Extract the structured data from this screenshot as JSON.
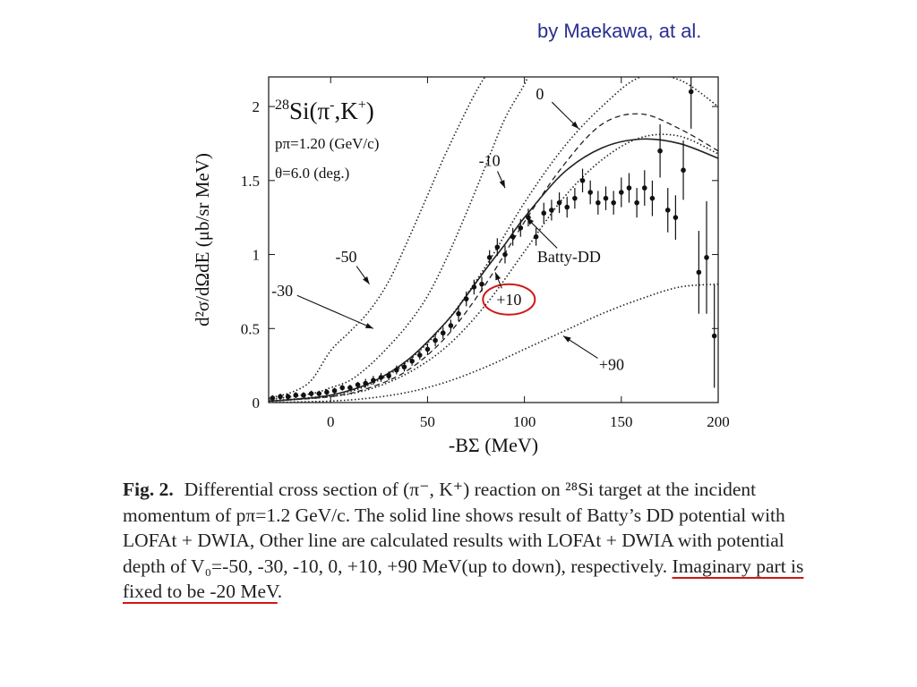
{
  "credit": "by Maekawa, at al.",
  "chart_data": {
    "type": "line",
    "title": "28Si(π-,K+)",
    "title_parts": {
      "mass": "28",
      "element": "Si(π",
      "minus": "-",
      "comma": ",K",
      "plus": "+",
      "close": ")"
    },
    "params": [
      "pπ=1.20 (GeV/c)",
      "θ=6.0 (deg.)"
    ],
    "xlabel": "-BΣ (MeV)",
    "ylabel": "d²σ/dΩdE (μb/sr MeV)",
    "xlim": [
      -32,
      200
    ],
    "ylim": [
      0,
      2.2
    ],
    "xticks": [
      0,
      50,
      100,
      150,
      200
    ],
    "yticks": [
      0,
      0.5,
      1,
      1.5,
      2
    ],
    "ytick_labels": [
      "0",
      "0.5",
      "1",
      "1.5",
      "2"
    ],
    "series": [
      {
        "name": "-50",
        "style": "dotted",
        "x": [
          -32,
          -20,
          -10,
          0,
          10,
          20,
          30,
          40,
          50,
          60,
          75,
          85
        ],
        "y": [
          0.03,
          0.07,
          0.15,
          0.35,
          0.48,
          0.62,
          0.82,
          1.1,
          1.4,
          1.7,
          2.1,
          2.3
        ]
      },
      {
        "name": "-30",
        "style": "dotted",
        "x": [
          -32,
          -10,
          0,
          10,
          20,
          30,
          40,
          50,
          60,
          70,
          80,
          90,
          100,
          105
        ],
        "y": [
          0.02,
          0.06,
          0.1,
          0.15,
          0.25,
          0.38,
          0.53,
          0.72,
          0.98,
          1.28,
          1.6,
          1.92,
          2.15,
          2.3
        ]
      },
      {
        "name": "-10",
        "style": "dotted",
        "x": [
          -32,
          0,
          20,
          40,
          60,
          80,
          100,
          120,
          140,
          160,
          180,
          200
        ],
        "y": [
          0.01,
          0.05,
          0.12,
          0.28,
          0.55,
          0.92,
          1.35,
          1.72,
          2.0,
          2.2,
          2.18,
          2.0
        ]
      },
      {
        "name": "0",
        "style": "dashed",
        "x": [
          -32,
          0,
          20,
          40,
          60,
          80,
          100,
          120,
          140,
          160,
          180,
          200
        ],
        "y": [
          0.01,
          0.04,
          0.1,
          0.22,
          0.45,
          0.8,
          1.22,
          1.6,
          1.88,
          1.95,
          1.85,
          1.7
        ]
      },
      {
        "name": "Batty-DD",
        "style": "solid",
        "x": [
          -32,
          -20,
          0,
          20,
          40,
          60,
          70,
          80,
          90,
          100,
          120,
          140,
          160,
          180,
          200
        ],
        "y": [
          0.01,
          0.02,
          0.05,
          0.13,
          0.29,
          0.55,
          0.72,
          0.9,
          1.07,
          1.25,
          1.55,
          1.72,
          1.78,
          1.75,
          1.65
        ]
      },
      {
        "name": "+10",
        "style": "dotted",
        "x": [
          -32,
          0,
          20,
          40,
          60,
          80,
          100,
          120,
          140,
          160,
          180,
          200
        ],
        "y": [
          0.01,
          0.04,
          0.09,
          0.2,
          0.38,
          0.66,
          1.02,
          1.38,
          1.64,
          1.79,
          1.8,
          1.68
        ]
      },
      {
        "name": "+90",
        "style": "dotted",
        "x": [
          -32,
          0,
          20,
          40,
          60,
          80,
          100,
          120,
          140,
          160,
          180,
          200
        ],
        "y": [
          0.0,
          0.01,
          0.03,
          0.07,
          0.14,
          0.24,
          0.36,
          0.48,
          0.6,
          0.7,
          0.78,
          0.8
        ]
      }
    ],
    "data_points": [
      {
        "x": -30,
        "y": 0.03,
        "e": 0.02
      },
      {
        "x": -26,
        "y": 0.04,
        "e": 0.02
      },
      {
        "x": -22,
        "y": 0.04,
        "e": 0.02
      },
      {
        "x": -18,
        "y": 0.05,
        "e": 0.02
      },
      {
        "x": -14,
        "y": 0.05,
        "e": 0.02
      },
      {
        "x": -10,
        "y": 0.06,
        "e": 0.02
      },
      {
        "x": -6,
        "y": 0.06,
        "e": 0.02
      },
      {
        "x": -2,
        "y": 0.07,
        "e": 0.02
      },
      {
        "x": 2,
        "y": 0.08,
        "e": 0.02
      },
      {
        "x": 6,
        "y": 0.1,
        "e": 0.02
      },
      {
        "x": 10,
        "y": 0.1,
        "e": 0.02
      },
      {
        "x": 14,
        "y": 0.12,
        "e": 0.02
      },
      {
        "x": 18,
        "y": 0.13,
        "e": 0.03
      },
      {
        "x": 22,
        "y": 0.15,
        "e": 0.03
      },
      {
        "x": 26,
        "y": 0.17,
        "e": 0.03
      },
      {
        "x": 30,
        "y": 0.18,
        "e": 0.03
      },
      {
        "x": 34,
        "y": 0.22,
        "e": 0.03
      },
      {
        "x": 38,
        "y": 0.24,
        "e": 0.03
      },
      {
        "x": 42,
        "y": 0.28,
        "e": 0.03
      },
      {
        "x": 46,
        "y": 0.32,
        "e": 0.03
      },
      {
        "x": 50,
        "y": 0.36,
        "e": 0.04
      },
      {
        "x": 54,
        "y": 0.42,
        "e": 0.04
      },
      {
        "x": 58,
        "y": 0.47,
        "e": 0.04
      },
      {
        "x": 62,
        "y": 0.52,
        "e": 0.04
      },
      {
        "x": 66,
        "y": 0.6,
        "e": 0.05
      },
      {
        "x": 70,
        "y": 0.7,
        "e": 0.05
      },
      {
        "x": 74,
        "y": 0.78,
        "e": 0.05
      },
      {
        "x": 78,
        "y": 0.8,
        "e": 0.05
      },
      {
        "x": 82,
        "y": 0.98,
        "e": 0.05
      },
      {
        "x": 86,
        "y": 1.05,
        "e": 0.06
      },
      {
        "x": 90,
        "y": 1.0,
        "e": 0.06
      },
      {
        "x": 94,
        "y": 1.12,
        "e": 0.06
      },
      {
        "x": 98,
        "y": 1.18,
        "e": 0.06
      },
      {
        "x": 102,
        "y": 1.25,
        "e": 0.06
      },
      {
        "x": 106,
        "y": 1.12,
        "e": 0.06
      },
      {
        "x": 110,
        "y": 1.28,
        "e": 0.07
      },
      {
        "x": 114,
        "y": 1.3,
        "e": 0.07
      },
      {
        "x": 118,
        "y": 1.35,
        "e": 0.07
      },
      {
        "x": 122,
        "y": 1.32,
        "e": 0.07
      },
      {
        "x": 126,
        "y": 1.38,
        "e": 0.07
      },
      {
        "x": 130,
        "y": 1.5,
        "e": 0.08
      },
      {
        "x": 134,
        "y": 1.42,
        "e": 0.08
      },
      {
        "x": 138,
        "y": 1.35,
        "e": 0.08
      },
      {
        "x": 142,
        "y": 1.38,
        "e": 0.08
      },
      {
        "x": 146,
        "y": 1.35,
        "e": 0.08
      },
      {
        "x": 150,
        "y": 1.42,
        "e": 0.1
      },
      {
        "x": 154,
        "y": 1.45,
        "e": 0.1
      },
      {
        "x": 158,
        "y": 1.35,
        "e": 0.1
      },
      {
        "x": 162,
        "y": 1.45,
        "e": 0.12
      },
      {
        "x": 166,
        "y": 1.38,
        "e": 0.12
      },
      {
        "x": 170,
        "y": 1.7,
        "e": 0.18
      },
      {
        "x": 174,
        "y": 1.3,
        "e": 0.15
      },
      {
        "x": 178,
        "y": 1.25,
        "e": 0.15
      },
      {
        "x": 182,
        "y": 1.57,
        "e": 0.2
      },
      {
        "x": 186,
        "y": 2.1,
        "e": 0.25
      },
      {
        "x": 190,
        "y": 0.88,
        "e": 0.28
      },
      {
        "x": 194,
        "y": 0.98,
        "e": 0.38
      },
      {
        "x": 198,
        "y": 0.45,
        "e": 0.35
      }
    ],
    "annotations": [
      {
        "label": "0",
        "text_at": [
          108,
          2.05
        ],
        "arrow_to": [
          128,
          1.85
        ]
      },
      {
        "label": "-10",
        "text_at": [
          82,
          1.6
        ],
        "arrow_to": [
          90,
          1.45
        ]
      },
      {
        "label": "-50",
        "text_at": [
          8,
          0.95
        ],
        "arrow_to": [
          20,
          0.8
        ]
      },
      {
        "label": "-30",
        "text_at": [
          -25,
          0.72
        ],
        "arrow_to": [
          22,
          0.5
        ]
      },
      {
        "label": "Batty-DD",
        "text_at": [
          123,
          0.95
        ],
        "arrow_to": [
          101,
          1.25
        ]
      },
      {
        "label": "+10",
        "text_at": [
          92,
          0.66
        ],
        "arrow_to": [
          85,
          0.88
        ],
        "circled": true,
        "circle_color": "#d01616"
      },
      {
        "label": "+90",
        "text_at": [
          145,
          0.22
        ],
        "arrow_to": [
          120,
          0.45
        ]
      }
    ]
  },
  "caption": {
    "fig_label": "Fig. 2.",
    "body": "Differential cross section of (π⁻, K⁺) reaction on ²⁸Si target at the incident momentum of pπ=1.2 GeV/c. The solid line shows result of Batty’s DD potential with LOFAt + DWIA, Other line are calculated results with LOFAt + DWIA with potential depth of V₀=-50, -30, -10, 0, +10, +90 MeV(up to down), respectively. ",
    "highlight": "Imaginary part is fixed to be -20 MeV",
    "end": "."
  },
  "colors": {
    "credit": "#2b2f8f",
    "highlight": "#d01616",
    "ink": "#111111"
  }
}
